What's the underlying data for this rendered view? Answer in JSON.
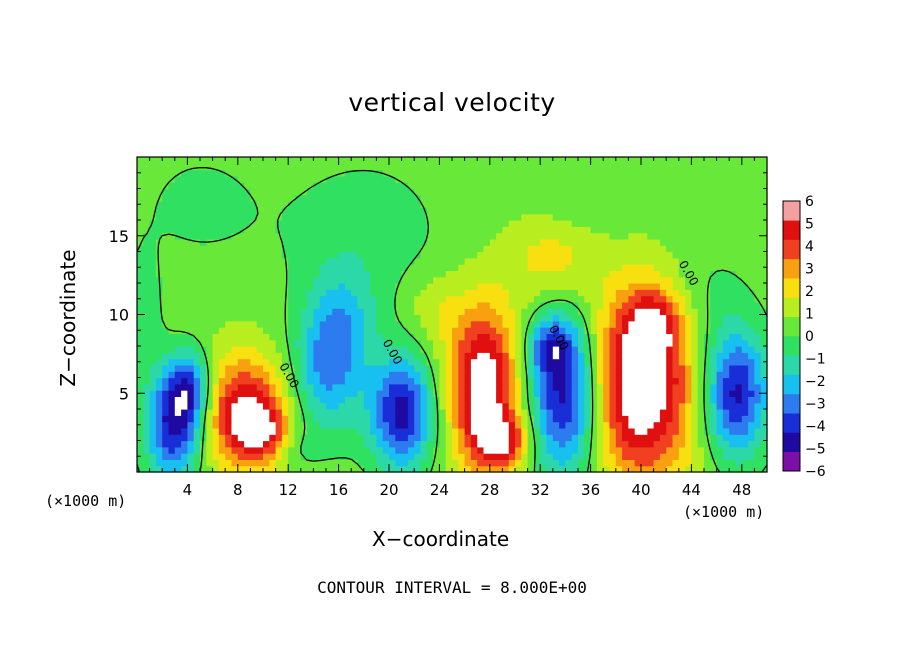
{
  "chart_data": {
    "type": "heatmap",
    "title": "vertical velocity",
    "xlabel": "X−coordinate",
    "ylabel": "Z−coordinate",
    "x_unit_left": "(×1000 m)",
    "x_unit_right": "(×1000 m)",
    "footer": "CONTOUR INTERVAL = 8.000E+00",
    "xlim": [
      0,
      50
    ],
    "ylim": [
      0,
      20
    ],
    "x_ticks": [
      4,
      8,
      12,
      16,
      20,
      24,
      28,
      32,
      36,
      40,
      44,
      48
    ],
    "x_tick_labels": [
      "4",
      "8",
      "12",
      "16",
      "20",
      "24",
      "28",
      "32",
      "36",
      "40",
      "44",
      "48"
    ],
    "y_ticks": [
      5,
      10,
      15
    ],
    "y_tick_labels": [
      "5",
      "10",
      "15"
    ],
    "contour_interval": 8.0,
    "contour_labels": [
      {
        "text": "0.00",
        "x": 11.8,
        "z": 6.0
      },
      {
        "text": "0.00",
        "x": 20.0,
        "z": 7.5
      },
      {
        "text": "0.00",
        "x": 33.2,
        "z": 8.4
      },
      {
        "text": "0.00",
        "x": 43.5,
        "z": 12.5
      }
    ],
    "colorbar": {
      "levels": [
        -6,
        -5,
        -4,
        -3,
        -2,
        -1,
        0,
        1,
        2,
        3,
        4,
        5,
        6
      ],
      "labels": [
        "6",
        "5",
        "4",
        "3",
        "2",
        "1",
        "0",
        "−1",
        "−2",
        "−3",
        "−4",
        "−5",
        "−6"
      ],
      "colors": [
        "#7b10a8",
        "#1e0aa0",
        "#1a2ed8",
        "#2c7cf0",
        "#18c0f0",
        "#2cd8a8",
        "#30e060",
        "#68e838",
        "#b8ee20",
        "#f8e010",
        "#f8a010",
        "#f04020",
        "#e01010",
        "#f4a0a0"
      ]
    },
    "features": [
      {
        "x": 3.0,
        "z": 3.0,
        "w": -6.0,
        "sx": 1.6,
        "sz": 2.4
      },
      {
        "x": 4.2,
        "z": 5.5,
        "w": -4.0,
        "sx": 1.2,
        "sz": 1.6
      },
      {
        "x": 8.5,
        "z": 3.8,
        "w": 5.5,
        "sx": 2.4,
        "sz": 2.6
      },
      {
        "x": 10.0,
        "z": 2.6,
        "w": 3.0,
        "sx": 1.4,
        "sz": 1.2
      },
      {
        "x": 15.0,
        "z": 6.5,
        "w": -3.5,
        "sx": 2.0,
        "sz": 3.0
      },
      {
        "x": 16.5,
        "z": 9.5,
        "w": -2.0,
        "sx": 1.8,
        "sz": 2.5
      },
      {
        "x": 21.0,
        "z": 3.8,
        "w": -6.0,
        "sx": 1.8,
        "sz": 2.5
      },
      {
        "x": 27.5,
        "z": 5.5,
        "w": 6.5,
        "sx": 2.0,
        "sz": 3.6
      },
      {
        "x": 29.0,
        "z": 2.0,
        "w": 4.0,
        "sx": 1.5,
        "sz": 1.2
      },
      {
        "x": 34.0,
        "z": 5.0,
        "w": -6.5,
        "sx": 2.0,
        "sz": 3.6
      },
      {
        "x": 32.8,
        "z": 8.0,
        "w": -3.0,
        "sx": 1.2,
        "sz": 1.2
      },
      {
        "x": 40.0,
        "z": 5.5,
        "w": 7.0,
        "sx": 3.0,
        "sz": 4.2
      },
      {
        "x": 41.0,
        "z": 9.5,
        "w": 3.0,
        "sx": 1.5,
        "sz": 1.5
      },
      {
        "x": 47.5,
        "z": 5.0,
        "w": -6.0,
        "sx": 1.8,
        "sz": 2.8
      },
      {
        "x": 33.0,
        "z": 13.5,
        "w": 2.0,
        "sx": 2.6,
        "sz": 2.0
      },
      {
        "x": 23.5,
        "z": 10.5,
        "w": 1.2,
        "sx": 1.6,
        "sz": 1.6
      },
      {
        "x": 18.0,
        "z": 15.0,
        "w": -1.2,
        "sx": 4.5,
        "sz": 3.5
      },
      {
        "x": 5.0,
        "z": 17.0,
        "w": -0.8,
        "sx": 4.0,
        "sz": 3.0
      },
      {
        "x": 45.0,
        "z": 11.0,
        "w": -1.0,
        "sx": 2.5,
        "sz": 2.5
      },
      {
        "x": 36.0,
        "z": 17.5,
        "w": -0.7,
        "sx": 3.0,
        "sz": 2.0
      },
      {
        "x": 0.5,
        "z": 10.0,
        "w": -1.0,
        "sx": 1.2,
        "sz": 3.0
      },
      {
        "x": 12.5,
        "z": 1.5,
        "w": -1.0,
        "sx": 1.2,
        "sz": 1.0
      }
    ]
  }
}
